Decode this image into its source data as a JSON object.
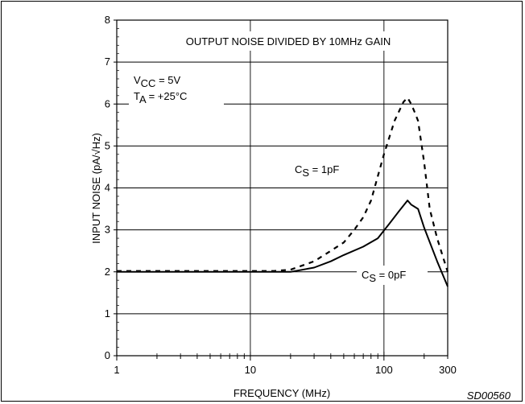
{
  "chart_data": {
    "type": "line",
    "title": "OUTPUT NOISE DIVIDED BY 10MHz GAIN",
    "xlabel": "FREQUENCY (MHz)",
    "ylabel": "INPUT NOISE (pA/√Hz)",
    "xscale": "log",
    "xlim": [
      1,
      300
    ],
    "ylim": [
      0,
      8
    ],
    "x_ticks": [
      1,
      10,
      100,
      300
    ],
    "x_tick_labels": [
      "1",
      "10",
      "100",
      "300"
    ],
    "y_ticks": [
      0,
      1,
      2,
      3,
      4,
      5,
      6,
      7,
      8
    ],
    "y_tick_labels": [
      "0",
      "1",
      "2",
      "3",
      "4",
      "5",
      "6",
      "7",
      "8"
    ],
    "grid": true,
    "conditions": {
      "vcc_main": "V",
      "vcc_sub": "CC",
      "vcc_rest": " = 5V",
      "ta_main": "T",
      "ta_sub": "A",
      "ta_rest": " = +25°C"
    },
    "series": [
      {
        "name": "CS = 1pF",
        "label_main": "C",
        "label_sub": "S",
        "label_rest": " = 1pF",
        "style": "dashed",
        "x": [
          1,
          2,
          5,
          10,
          15,
          20,
          30,
          40,
          50,
          60,
          70,
          80,
          100,
          120,
          140,
          150,
          160,
          170,
          180,
          200,
          220,
          250,
          280,
          300
        ],
        "y": [
          2.02,
          2.02,
          2.02,
          2.02,
          2.02,
          2.05,
          2.25,
          2.5,
          2.7,
          3.0,
          3.3,
          3.7,
          4.8,
          5.6,
          6.05,
          6.15,
          6.0,
          5.8,
          5.6,
          4.6,
          3.5,
          2.8,
          2.3,
          2.0
        ]
      },
      {
        "name": "CS = 0pF",
        "label_main": "C",
        "label_sub": "S",
        "label_rest": " = 0pF",
        "style": "solid",
        "x": [
          1,
          2,
          5,
          10,
          15,
          20,
          30,
          40,
          50,
          70,
          90,
          110,
          130,
          150,
          160,
          180,
          200,
          250,
          300
        ],
        "y": [
          2.0,
          2.0,
          2.0,
          2.0,
          2.0,
          2.0,
          2.1,
          2.25,
          2.4,
          2.6,
          2.8,
          3.15,
          3.45,
          3.7,
          3.6,
          3.5,
          3.05,
          2.25,
          1.65
        ]
      }
    ]
  },
  "figure_code": "SD00560"
}
